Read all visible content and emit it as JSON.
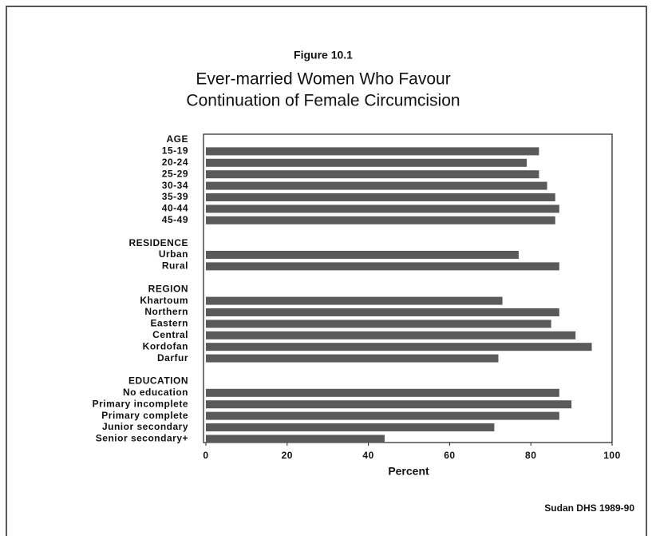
{
  "chart_data": {
    "type": "bar",
    "orientation": "horizontal",
    "figure_label": "Figure 10.1",
    "title": [
      "Ever-married Women Who Favour",
      "Continuation of Female Circumcision"
    ],
    "xlabel": "Percent",
    "source": "Sudan DHS 1989-90",
    "color": "#5a5a5a",
    "xlim": [
      0,
      100
    ],
    "xticks": [
      0,
      20,
      40,
      60,
      80,
      100
    ],
    "groups": [
      {
        "name": "AGE",
        "categories": [
          "15-19",
          "20-24",
          "25-29",
          "30-34",
          "35-39",
          "40-44",
          "45-49"
        ],
        "values": [
          82,
          79,
          82,
          84,
          86,
          87,
          86
        ]
      },
      {
        "name": "RESIDENCE",
        "categories": [
          "Urban",
          "Rural"
        ],
        "values": [
          77,
          87
        ]
      },
      {
        "name": "REGION",
        "categories": [
          "Khartoum",
          "Northern",
          "Eastern",
          "Central",
          "Kordofan",
          "Darfur"
        ],
        "values": [
          73,
          87,
          85,
          91,
          95,
          72
        ]
      },
      {
        "name": "EDUCATION",
        "categories": [
          "No education",
          "Primary incomplete",
          "Primary complete",
          "Junior secondary",
          "Senior secondary+"
        ],
        "values": [
          87,
          90,
          87,
          71,
          44
        ]
      }
    ]
  }
}
